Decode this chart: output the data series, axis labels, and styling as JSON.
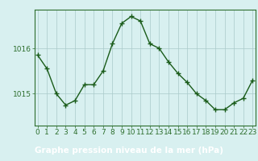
{
  "x": [
    0,
    1,
    2,
    3,
    4,
    5,
    6,
    7,
    8,
    9,
    10,
    11,
    12,
    13,
    14,
    15,
    16,
    17,
    18,
    19,
    20,
    21,
    22,
    23
  ],
  "y": [
    1015.85,
    1015.55,
    1015.0,
    1014.75,
    1014.85,
    1015.2,
    1015.2,
    1015.5,
    1016.1,
    1016.55,
    1016.7,
    1016.6,
    1016.1,
    1016.0,
    1015.7,
    1015.45,
    1015.25,
    1015.0,
    1014.85,
    1014.65,
    1014.65,
    1014.8,
    1014.9,
    1015.3
  ],
  "line_color": "#1a5c1a",
  "marker": "+",
  "marker_size": 4,
  "marker_color": "#1a5c1a",
  "bg_color": "#d8f0f0",
  "plot_bg_color": "#d8f0f0",
  "grid_color": "#aacaca",
  "xlabel": "Graphe pression niveau de la mer (hPa)",
  "xlabel_fontsize": 7.5,
  "yticks": [
    1015,
    1016
  ],
  "xticks": [
    0,
    1,
    2,
    3,
    4,
    5,
    6,
    7,
    8,
    9,
    10,
    11,
    12,
    13,
    14,
    15,
    16,
    17,
    18,
    19,
    20,
    21,
    22,
    23
  ],
  "ylim": [
    1014.3,
    1016.85
  ],
  "xlim": [
    -0.3,
    23.3
  ],
  "tick_fontsize": 6.5,
  "line_width": 1.0,
  "border_color": "#2d6e2d",
  "bottom_bar_color": "#2d6e2d",
  "bottom_bar_height": 0.13
}
